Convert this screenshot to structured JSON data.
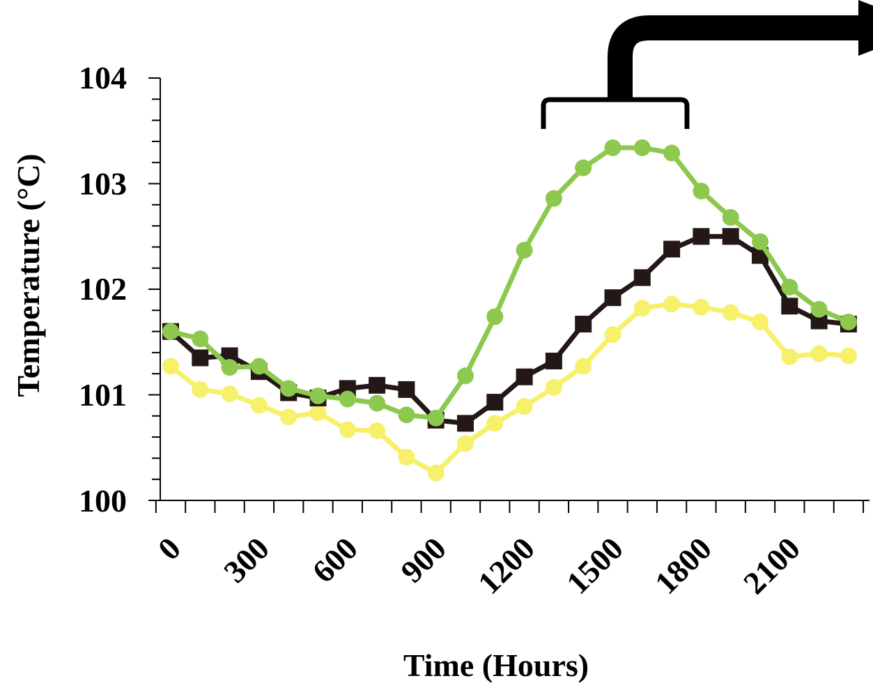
{
  "chart_data": {
    "type": "line",
    "xlabel": "Time (Hours)",
    "ylabel": "Temperature (°C)",
    "ylim": [
      100,
      104
    ],
    "yticks": [
      "100",
      "101",
      "102",
      "103",
      "104"
    ],
    "xticks": [
      "0",
      "300",
      "600",
      "900",
      "1200",
      "1500",
      "1800",
      "2100"
    ],
    "x": [
      0,
      100,
      200,
      300,
      400,
      500,
      600,
      700,
      800,
      900,
      1000,
      1100,
      1200,
      1300,
      1400,
      1500,
      1600,
      1700,
      1800,
      1900,
      2000,
      2100,
      2200,
      2300
    ],
    "series": [
      {
        "color": "#231815",
        "marker": "square",
        "values": [
          101.6,
          101.35,
          101.37,
          101.22,
          101.02,
          100.97,
          101.06,
          101.09,
          101.05,
          100.76,
          100.73,
          100.93,
          101.17,
          101.32,
          101.67,
          101.92,
          102.11,
          102.38,
          102.5,
          102.5,
          102.32,
          101.84,
          101.7,
          101.67
        ]
      },
      {
        "color": "#8cc94e",
        "marker": "circle",
        "values": [
          101.6,
          101.53,
          101.26,
          101.27,
          101.06,
          100.99,
          100.96,
          100.92,
          100.81,
          100.78,
          101.18,
          101.74,
          102.37,
          102.86,
          103.15,
          103.34,
          103.34,
          103.29,
          102.93,
          102.68,
          102.45,
          102.02,
          101.81,
          101.69
        ]
      },
      {
        "color": "#f6f06a",
        "marker": "circle",
        "values": [
          101.27,
          101.05,
          101.01,
          100.9,
          100.79,
          100.83,
          100.67,
          100.66,
          100.41,
          100.26,
          100.54,
          100.73,
          100.89,
          101.07,
          101.27,
          101.57,
          101.82,
          101.86,
          101.83,
          101.78,
          101.69,
          101.36,
          101.39,
          101.37
        ]
      }
    ],
    "annotation": {
      "type": "bracket-with-arrow",
      "x_range": [
        1250,
        1750
      ]
    }
  }
}
